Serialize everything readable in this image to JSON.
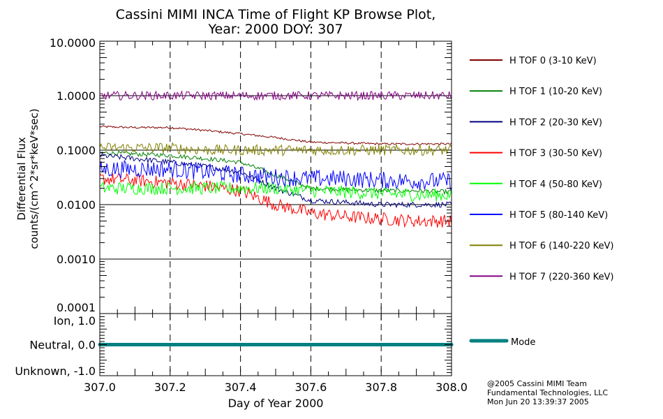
{
  "chart_data": {
    "type": "line",
    "title": "Cassini MIMI INCA Time of Flight KP Browse Plot,",
    "subtitle": "Year: 2000 DOY: 307",
    "xlabel": "Day of Year 2000",
    "ylabel_line1": "Differential Flux",
    "ylabel_line2": "counts/(cm^2*sr*keV*sec)",
    "xlim": [
      307.0,
      308.0
    ],
    "ylim": [
      0.0001,
      10.0
    ],
    "yscale": "log",
    "x_ticks": [
      "307.0",
      "307.2",
      "307.4",
      "307.6",
      "307.8",
      "308.0"
    ],
    "y_ticks": [
      "10.0000",
      "1.0000",
      "0.1000",
      "0.0100",
      "0.0010",
      "0.0001"
    ],
    "grid": "horizontal solid at decades, vertical dashed at 307.2/307.4/307.6/307.8",
    "legend_position": "right",
    "trend_x": [
      307.0,
      307.1,
      307.2,
      307.3,
      307.4,
      307.5,
      307.6,
      307.7,
      307.8,
      307.9,
      308.0
    ],
    "series": [
      {
        "name": "H TOF 0 (3-10 KeV)",
        "color": "#800000",
        "noise": 0.02,
        "values": [
          0.27,
          0.26,
          0.26,
          0.23,
          0.2,
          0.17,
          0.14,
          0.135,
          0.13,
          0.13,
          0.13
        ]
      },
      {
        "name": "H TOF 1 (10-20 KeV)",
        "color": "#008000",
        "noise": 0.04,
        "values": [
          0.09,
          0.085,
          0.08,
          0.07,
          0.06,
          0.035,
          0.02,
          0.019,
          0.018,
          0.018,
          0.017
        ]
      },
      {
        "name": "H TOF 2 (20-30 KeV)",
        "color": "#000080",
        "noise": 0.05,
        "values": [
          0.08,
          0.07,
          0.06,
          0.05,
          0.04,
          0.02,
          0.012,
          0.011,
          0.01,
          0.01,
          0.01
        ]
      },
      {
        "name": "H TOF 3 (30-50 KeV)",
        "color": "#ff0000",
        "noise": 0.12,
        "values": [
          0.03,
          0.028,
          0.025,
          0.022,
          0.018,
          0.01,
          0.007,
          0.006,
          0.0055,
          0.005,
          0.005
        ]
      },
      {
        "name": "H TOF 4 (50-80 KeV)",
        "color": "#00ff00",
        "noise": 0.12,
        "values": [
          0.02,
          0.02,
          0.02,
          0.02,
          0.02,
          0.02,
          0.018,
          0.017,
          0.016,
          0.015,
          0.015
        ]
      },
      {
        "name": "H TOF 5 (80-140 KeV)",
        "color": "#0000ff",
        "noise": 0.16,
        "values": [
          0.045,
          0.045,
          0.045,
          0.04,
          0.035,
          0.032,
          0.03,
          0.03,
          0.028,
          0.027,
          0.027
        ]
      },
      {
        "name": "H TOF 6 (140-220 KeV)",
        "color": "#808000",
        "noise": 0.1,
        "values": [
          0.11,
          0.11,
          0.11,
          0.1,
          0.1,
          0.1,
          0.1,
          0.1,
          0.1,
          0.1,
          0.1
        ]
      },
      {
        "name": "H TOF 7 (220-360 KeV)",
        "color": "#800080",
        "noise": 0.08,
        "values": [
          1.0,
          1.0,
          1.0,
          1.0,
          1.0,
          1.0,
          1.0,
          1.0,
          1.0,
          1.0,
          1.0
        ]
      }
    ],
    "mode_panel": {
      "y_ticks": [
        "Ion, 1.0",
        "Neutral, 0.0",
        "Unknown, -1.0"
      ],
      "ylim": [
        -1.0,
        1.0
      ],
      "series": {
        "name": "Mode",
        "color": "#008080",
        "value": 0.0
      }
    }
  },
  "footer": {
    "line1": "@2005 Cassini MIMI Team",
    "line2": "Fundamental Technologies, LLC",
    "line3": "Mon Jun 20 13:39:37 2005"
  }
}
